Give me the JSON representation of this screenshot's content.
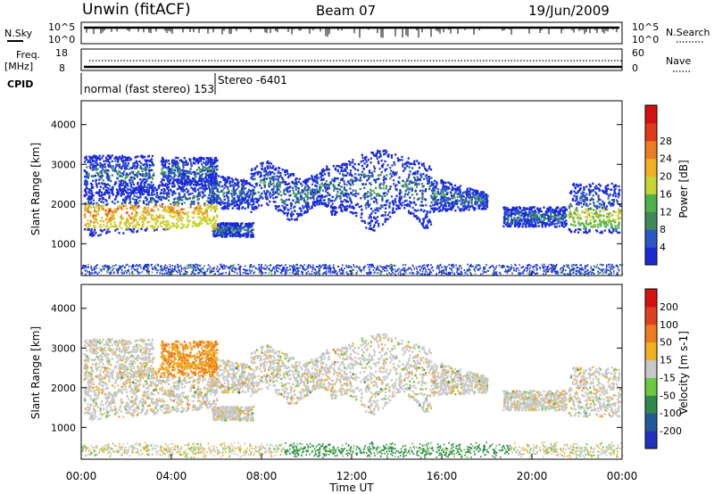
{
  "header": {
    "station": "Unwin (fitACF)",
    "beam": "Beam 07",
    "date": "19/Jun/2009"
  },
  "status_panels": {
    "nsky_label": "N.Sky",
    "nsky_ticks": [
      "10^5",
      "10^0"
    ],
    "nsearch_label": "N.Search",
    "nsearch_ticks": [
      "10^5",
      "10^0"
    ],
    "freq_label": "Freq.",
    "freq_unit": "[MHz]",
    "freq_ticks": [
      "18",
      "8"
    ],
    "nave_label": "Nave",
    "nave_ticks": [
      "60",
      "0"
    ],
    "cpid_label": "CPID",
    "cpid_mode": "normal (fast stereo) 153",
    "cpid_mode2": "Stereo -6401"
  },
  "chart_data": [
    {
      "type": "heatmap",
      "name": "power",
      "ylabel": "Slant Range [km]",
      "ylim": [
        200,
        4600
      ],
      "yticks": [
        "1000",
        "2000",
        "3000",
        "4000"
      ],
      "colorbar_label": "Power [dB]",
      "colorbar_ticks": [
        "4",
        "8",
        "12",
        "16",
        "20",
        "24",
        "28"
      ],
      "colors": [
        "#1a2bd6",
        "#2a56c8",
        "#3f8a5a",
        "#4fb14a",
        "#c8d432",
        "#f0b020",
        "#f07a20",
        "#e03a1a",
        "#d41010"
      ]
    },
    {
      "type": "heatmap",
      "name": "velocity",
      "ylabel": "Slant Range [km]",
      "ylim": [
        200,
        4600
      ],
      "yticks": [
        "1000",
        "2000",
        "3000",
        "4000"
      ],
      "colorbar_label": "Velocity [m s-1]",
      "colorbar_ticks": [
        "200",
        "100",
        "50",
        "15",
        "-15",
        "-50",
        "-100",
        "-200"
      ],
      "colors": [
        "#2030c0",
        "#205a9a",
        "#2e8a4a",
        "#6cc840",
        "#c8c8c8",
        "#f0b020",
        "#f07a20",
        "#e04020",
        "#d81010"
      ]
    }
  ],
  "xaxis": {
    "label": "Time UT",
    "ticks": [
      "00:00",
      "04:00",
      "08:00",
      "12:00",
      "16:00",
      "20:00",
      "00:00"
    ]
  }
}
